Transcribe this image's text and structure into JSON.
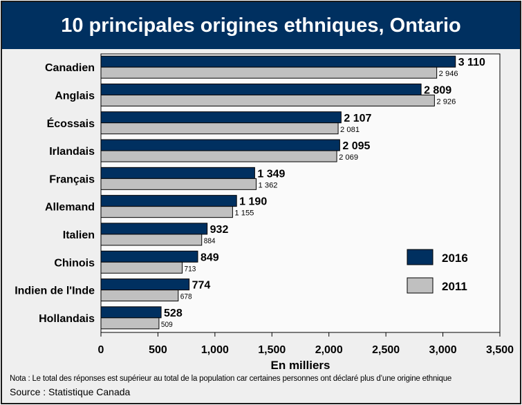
{
  "chart_data": {
    "type": "bar",
    "orientation": "horizontal",
    "title": "10  principales origines ethniques, Ontario",
    "xlabel": "En milliers",
    "ylabel": "",
    "categories": [
      "Canadien",
      "Anglais",
      "Écossais",
      "Irlandais",
      "Français",
      "Allemand",
      "Italien",
      "Chinois",
      "Indien de l'Inde",
      "Hollandais"
    ],
    "series": [
      {
        "name": "2016",
        "color": "#003060",
        "values": [
          3110,
          2809,
          2107,
          2095,
          1349,
          1190,
          932,
          849,
          774,
          528
        ],
        "labels": [
          "3 110",
          "2 809",
          "2 107",
          "2 095",
          "1 349",
          "1 190",
          "932",
          "849",
          "774",
          "528"
        ]
      },
      {
        "name": "2011",
        "color": "#c0c0c0",
        "values": [
          2946,
          2926,
          2081,
          2069,
          1362,
          1155,
          884,
          713,
          678,
          509
        ],
        "labels": [
          "2 946",
          "2 926",
          "2 081",
          "2 069",
          "1 362",
          "1 155",
          "884",
          "713",
          "678",
          "509"
        ]
      }
    ],
    "xlim": [
      0,
      3500
    ],
    "xticks": [
      0,
      500,
      1000,
      1500,
      2000,
      2500,
      3000,
      3500
    ],
    "xtick_labels": [
      "0",
      "500",
      "1,000",
      "1,500",
      "2,000",
      "2,500",
      "3,000",
      "3,500"
    ],
    "grid": false,
    "legend": {
      "position": "bottom-right",
      "entries": [
        "2016",
        "2011"
      ]
    }
  },
  "footer": {
    "note": "Nota : Le total des réponses est supérieur au total de la population car certaines personnes ont déclaré plus d’une origine ethnique",
    "source": "Source : Statistique Canada"
  }
}
